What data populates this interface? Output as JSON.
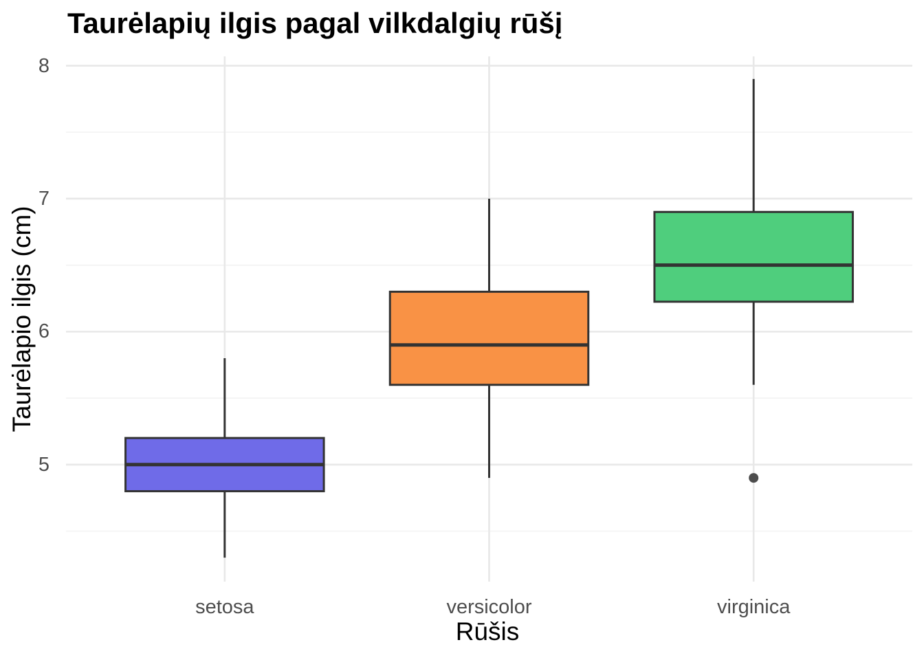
{
  "chart_data": {
    "type": "box",
    "title": "Taurėlapių ilgis pagal vilkdalgių rūšį",
    "xlabel": "Rūšis",
    "ylabel": "Taurėlapio ilgis (cm)",
    "categories": [
      "setosa",
      "versicolor",
      "virginica"
    ],
    "series": [
      {
        "name": "setosa",
        "min": 4.3,
        "q1": 4.8,
        "median": 5.0,
        "q3": 5.2,
        "max": 5.8,
        "outliers": [],
        "fill": "#6F6BE8"
      },
      {
        "name": "versicolor",
        "min": 4.9,
        "q1": 5.6,
        "median": 5.9,
        "q3": 6.3,
        "max": 7.0,
        "outliers": [],
        "fill": "#F99245"
      },
      {
        "name": "virginica",
        "min": 5.6,
        "q1": 6.225,
        "median": 6.5,
        "q3": 6.9,
        "max": 7.9,
        "outliers": [
          4.9
        ],
        "fill": "#4FCE7D"
      }
    ],
    "yticks_major": [
      5,
      6,
      7,
      8
    ],
    "yticks_minor": [
      4.5,
      5.5,
      6.5,
      7.5
    ],
    "ylim": [
      4.12,
      8.07
    ],
    "xlim": [
      0.4,
      3.6
    ],
    "box_width": 0.75,
    "grid": true,
    "legend": "none",
    "colors": {
      "box_border": "#333333",
      "grid_major": "#E8E8E8",
      "grid_minor": "#F2F2F2",
      "tick_label": "#4D4D4D",
      "axis_title": "#000000",
      "title": "#000000",
      "outlier": "#4D4D4D",
      "background": "#FFFFFF"
    }
  }
}
